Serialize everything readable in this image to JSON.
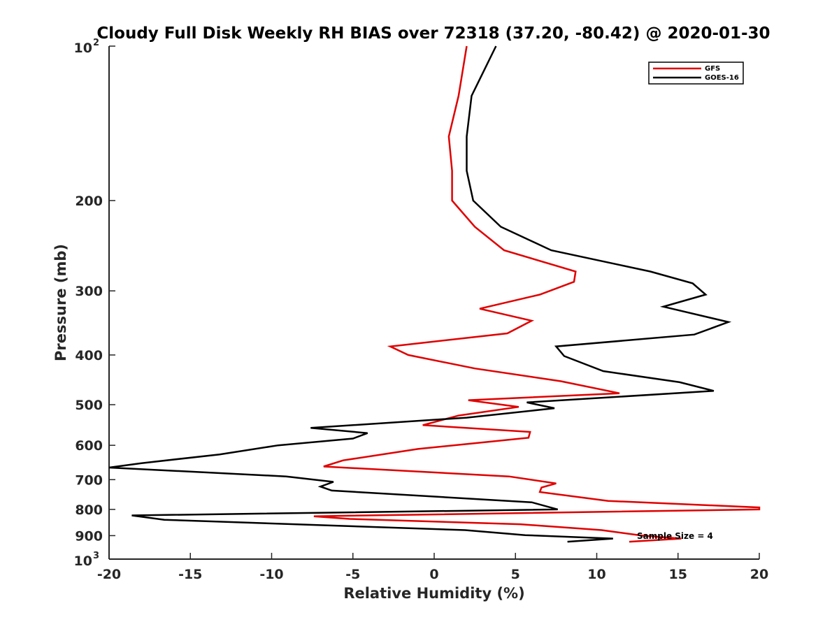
{
  "chart_data": {
    "type": "line",
    "title": "Cloudy Full Disk Weekly RH BIAS over 72318 (37.20, -80.42) @ 2020-01-30",
    "xlabel": "Relative Humidity (%)",
    "ylabel": "Pressure (mb)",
    "xlim": [
      -20,
      20
    ],
    "ylim": [
      100,
      1000
    ],
    "yscale": "log",
    "y_reversed": true,
    "grid": false,
    "legend_position": "top-right",
    "x_ticks": [
      -20,
      -15,
      -10,
      -5,
      0,
      5,
      10,
      15,
      20
    ],
    "x_tick_labels": [
      "-20",
      "-15",
      "-10",
      "-5",
      "0",
      "5",
      "10",
      "15",
      "20"
    ],
    "y_ticks": [
      200,
      300,
      400,
      500,
      600,
      700,
      800,
      900
    ],
    "y_tick_labels": [
      "200",
      "300",
      "400",
      "500",
      "600",
      "700",
      "800",
      "900"
    ],
    "y_edge_labels": [
      {
        "value": 100,
        "base": "10",
        "exp": "2"
      },
      {
        "value": 1000,
        "base": "10",
        "exp": "3"
      }
    ],
    "annotation": "Sample Size = 4",
    "series": [
      {
        "name": "GFS",
        "color": "#e00000",
        "points": [
          [
            2.0,
            100
          ],
          [
            1.5,
            125
          ],
          [
            0.9,
            150
          ],
          [
            1.1,
            175
          ],
          [
            1.1,
            200
          ],
          [
            2.5,
            225
          ],
          [
            4.3,
            250
          ],
          [
            8.7,
            275
          ],
          [
            8.6,
            288
          ],
          [
            6.5,
            305
          ],
          [
            2.8,
            325
          ],
          [
            6.0,
            343
          ],
          [
            4.5,
            363
          ],
          [
            -2.7,
            385
          ],
          [
            -1.6,
            400
          ],
          [
            2.5,
            425
          ],
          [
            7.8,
            450
          ],
          [
            11.4,
            475
          ],
          [
            2.1,
            490
          ],
          [
            5.2,
            505
          ],
          [
            1.5,
            525
          ],
          [
            -0.7,
            548
          ],
          [
            5.9,
            565
          ],
          [
            5.8,
            580
          ],
          [
            -1.0,
            610
          ],
          [
            -5.6,
            642
          ],
          [
            -6.8,
            660
          ],
          [
            4.6,
            690
          ],
          [
            7.5,
            712
          ],
          [
            6.6,
            725
          ],
          [
            6.5,
            740
          ],
          [
            10.7,
            770
          ],
          [
            20.0,
            793
          ],
          [
            20.0,
            800
          ],
          [
            -7.4,
            825
          ],
          [
            -5.2,
            835
          ],
          [
            5.3,
            855
          ],
          [
            10.3,
            878
          ],
          [
            12.8,
            900
          ],
          [
            15.2,
            912
          ],
          [
            12.0,
            925
          ]
        ]
      },
      {
        "name": "GOES-16",
        "color": "#000000",
        "points": [
          [
            3.8,
            100
          ],
          [
            2.3,
            125
          ],
          [
            2.0,
            150
          ],
          [
            2.0,
            175
          ],
          [
            2.4,
            200
          ],
          [
            4.1,
            225
          ],
          [
            7.2,
            250
          ],
          [
            13.3,
            275
          ],
          [
            15.9,
            290
          ],
          [
            16.7,
            305
          ],
          [
            14.1,
            322
          ],
          [
            18.1,
            345
          ],
          [
            16.0,
            365
          ],
          [
            7.5,
            385
          ],
          [
            8.0,
            402
          ],
          [
            10.4,
            430
          ],
          [
            15.1,
            452
          ],
          [
            17.2,
            470
          ],
          [
            5.7,
            495
          ],
          [
            7.4,
            508
          ],
          [
            2.0,
            530
          ],
          [
            -7.6,
            555
          ],
          [
            -4.1,
            568
          ],
          [
            -5.0,
            582
          ],
          [
            -9.6,
            600
          ],
          [
            -13.2,
            625
          ],
          [
            -18.0,
            650
          ],
          [
            -20.0,
            663
          ],
          [
            -9.1,
            690
          ],
          [
            -6.2,
            707
          ],
          [
            -7.0,
            722
          ],
          [
            -6.3,
            735
          ],
          [
            6.0,
            775
          ],
          [
            7.6,
            800
          ],
          [
            -18.6,
            822
          ],
          [
            -16.6,
            838
          ],
          [
            1.9,
            878
          ],
          [
            5.6,
            898
          ],
          [
            11.0,
            912
          ],
          [
            8.2,
            925
          ]
        ]
      }
    ]
  }
}
